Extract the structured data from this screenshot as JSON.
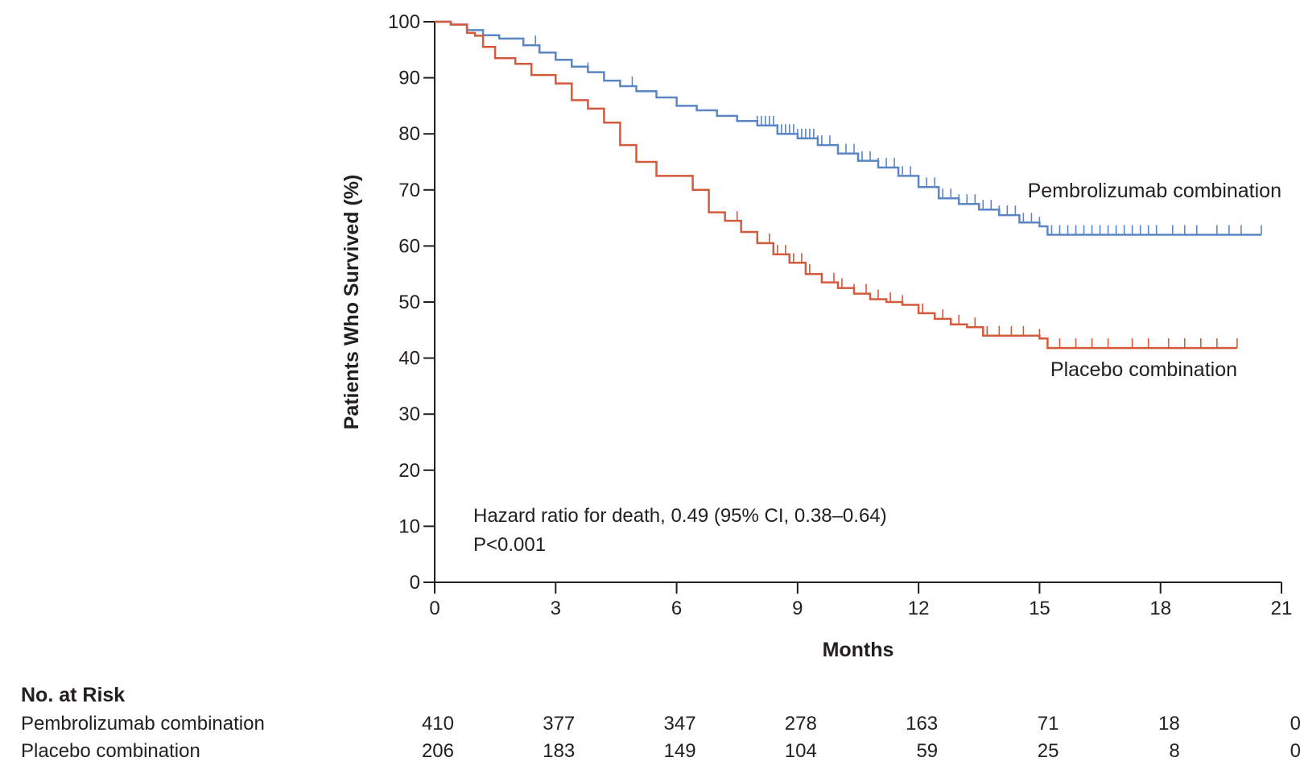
{
  "chart_data": {
    "type": "line",
    "title": "",
    "xlabel": "Months",
    "ylabel": "Patients Who Survived (%)",
    "xlim": [
      0,
      21
    ],
    "ylim": [
      0,
      100
    ],
    "x_ticks": [
      0,
      3,
      6,
      9,
      12,
      15,
      18,
      21
    ],
    "y_ticks": [
      0,
      10,
      20,
      30,
      40,
      50,
      60,
      70,
      80,
      90,
      100
    ],
    "grid": false,
    "colors": {
      "pembrolizumab": "#5b86c5",
      "placebo": "#d45a3c",
      "axis": "#231f20"
    },
    "series": [
      {
        "name": "Pembrolizumab combination",
        "step": true,
        "points": [
          [
            0,
            100
          ],
          [
            0.4,
            99.5
          ],
          [
            0.8,
            98.5
          ],
          [
            1.2,
            97.6
          ],
          [
            1.6,
            97
          ],
          [
            2.2,
            95.8
          ],
          [
            2.6,
            94.5
          ],
          [
            3.0,
            93.2
          ],
          [
            3.4,
            92
          ],
          [
            3.8,
            91
          ],
          [
            4.2,
            89.5
          ],
          [
            4.6,
            88.5
          ],
          [
            5.0,
            87.6
          ],
          [
            5.5,
            86.5
          ],
          [
            6.0,
            85
          ],
          [
            6.5,
            84.2
          ],
          [
            7.0,
            83.2
          ],
          [
            7.5,
            82.3
          ],
          [
            8.0,
            81.5
          ],
          [
            8.5,
            80
          ],
          [
            9.0,
            79.2
          ],
          [
            9.5,
            78
          ],
          [
            10.0,
            76.5
          ],
          [
            10.5,
            75.2
          ],
          [
            11.0,
            74
          ],
          [
            11.5,
            72.5
          ],
          [
            12.0,
            70.5
          ],
          [
            12.5,
            68.5
          ],
          [
            13.0,
            67.5
          ],
          [
            13.5,
            66.5
          ],
          [
            14.0,
            65.5
          ],
          [
            14.5,
            64.2
          ],
          [
            15.0,
            63.5
          ],
          [
            15.2,
            62
          ],
          [
            20.5,
            62
          ]
        ],
        "censored": [
          2.5,
          3.8,
          4.9,
          8.0,
          8.1,
          8.2,
          8.3,
          8.4,
          8.5,
          8.6,
          8.7,
          8.8,
          8.9,
          9.0,
          9.1,
          9.2,
          9.3,
          9.4,
          9.5,
          9.6,
          9.8,
          10.0,
          10.2,
          10.4,
          10.6,
          10.8,
          11.0,
          11.2,
          11.4,
          11.6,
          11.8,
          12.0,
          12.2,
          12.4,
          12.6,
          12.8,
          13.0,
          13.2,
          13.4,
          13.6,
          13.8,
          14.0,
          14.2,
          14.4,
          14.6,
          14.8,
          15.0,
          15.3,
          15.5,
          15.7,
          15.9,
          16.1,
          16.3,
          16.5,
          16.7,
          16.9,
          17.1,
          17.3,
          17.5,
          17.7,
          17.9,
          18.3,
          18.6,
          18.9,
          19.4,
          19.7,
          20.0,
          20.5
        ]
      },
      {
        "name": "Placebo combination",
        "step": true,
        "points": [
          [
            0,
            100
          ],
          [
            0.4,
            99.5
          ],
          [
            0.8,
            98
          ],
          [
            1.0,
            97.5
          ],
          [
            1.2,
            95.5
          ],
          [
            1.5,
            93.5
          ],
          [
            2.0,
            92.5
          ],
          [
            2.4,
            90.5
          ],
          [
            3.0,
            89
          ],
          [
            3.4,
            86
          ],
          [
            3.8,
            84.5
          ],
          [
            4.2,
            82
          ],
          [
            4.6,
            78
          ],
          [
            5.0,
            75
          ],
          [
            5.5,
            72.5
          ],
          [
            6.0,
            72.5
          ],
          [
            6.4,
            70
          ],
          [
            6.8,
            66
          ],
          [
            7.2,
            64.5
          ],
          [
            7.6,
            62.5
          ],
          [
            8.0,
            60.5
          ],
          [
            8.4,
            58.5
          ],
          [
            8.8,
            57
          ],
          [
            9.2,
            55
          ],
          [
            9.6,
            53.5
          ],
          [
            10.0,
            52.5
          ],
          [
            10.4,
            51.5
          ],
          [
            10.8,
            50.5
          ],
          [
            11.2,
            50
          ],
          [
            11.6,
            49.5
          ],
          [
            12.0,
            48
          ],
          [
            12.4,
            47
          ],
          [
            12.8,
            46
          ],
          [
            13.2,
            45.5
          ],
          [
            13.6,
            44
          ],
          [
            14.2,
            44
          ],
          [
            15.0,
            43.5
          ],
          [
            15.2,
            41.8
          ],
          [
            19.9,
            41.8
          ]
        ],
        "censored": [
          7.5,
          8.3,
          8.5,
          8.7,
          8.9,
          9.1,
          9.3,
          9.6,
          9.9,
          10.1,
          10.4,
          10.7,
          11.0,
          11.3,
          11.6,
          12.1,
          12.6,
          13.0,
          13.4,
          13.7,
          14.0,
          14.3,
          14.6,
          15.0,
          15.5,
          15.9,
          16.3,
          16.7,
          17.3,
          17.7,
          18.2,
          18.6,
          19.0,
          19.4,
          19.9
        ]
      }
    ],
    "annotations": {
      "hazard_ratio": "Hazard ratio for death, 0.49 (95% CI, 0.38–0.64)",
      "p_value": "P<0.001",
      "pembro_label": "Pembrolizumab combination",
      "placebo_label": "Placebo combination"
    },
    "at_risk": {
      "header": "No. at Risk",
      "rows": [
        {
          "label": "Pembrolizumab combination",
          "values": [
            "410",
            "377",
            "347",
            "278",
            "163",
            "71",
            "18",
            "0"
          ]
        },
        {
          "label": "Placebo combination",
          "values": [
            "206",
            "183",
            "149",
            "104",
            "59",
            "25",
            "8",
            "0"
          ]
        }
      ]
    }
  }
}
